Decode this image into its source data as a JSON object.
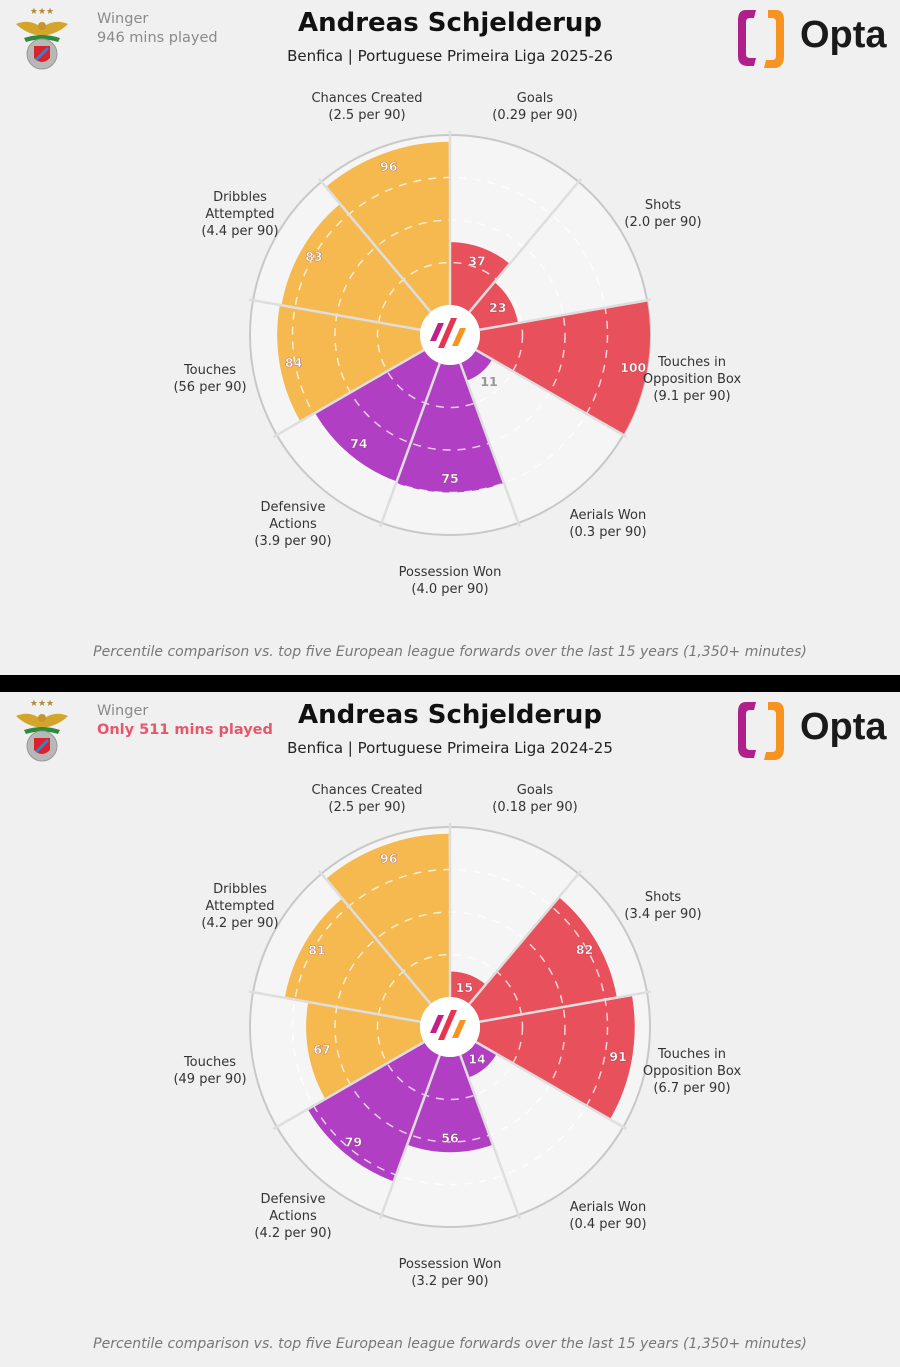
{
  "colors": {
    "attacking": "#e8505b",
    "possession": "#f5b94f",
    "defending": "#b13fc4",
    "low_label": "#999999",
    "warning": "#e8566a"
  },
  "brand": {
    "name": "Opta"
  },
  "panels": [
    {
      "position": "Winger",
      "minutes": "946 mins played",
      "minutes_warning": false,
      "title": "Andreas Schjelderup",
      "subtitle": "Benfica | Portuguese Primeira Liga 2025-26",
      "footer": "Percentile comparison vs. top five European league forwards over the last 15 years (1,350+ minutes)",
      "chart_data": {
        "type": "polar-bar",
        "scale": [
          0,
          100
        ],
        "categories": [
          {
            "name": "Goals",
            "lines": [
              "Goals"
            ],
            "per90": "(0.29 per 90)",
            "value": 37,
            "group": "attacking"
          },
          {
            "name": "Shots",
            "lines": [
              "Shots"
            ],
            "per90": "(2.0 per 90)",
            "value": 23,
            "group": "attacking"
          },
          {
            "name": "Touches in Opposition Box",
            "lines": [
              "Touches in",
              "Opposition Box"
            ],
            "per90": "(9.1 per 90)",
            "value": 100,
            "group": "attacking"
          },
          {
            "name": "Aerials Won",
            "lines": [
              "Aerials Won"
            ],
            "per90": "(0.3 per 90)",
            "value": 11,
            "group": "defending"
          },
          {
            "name": "Possession Won",
            "lines": [
              "Possession Won"
            ],
            "per90": "(4.0 per 90)",
            "value": 75,
            "group": "defending"
          },
          {
            "name": "Defensive Actions",
            "lines": [
              "Defensive",
              "Actions"
            ],
            "per90": "(3.9 per 90)",
            "value": 74,
            "group": "defending"
          },
          {
            "name": "Touches",
            "lines": [
              "Touches"
            ],
            "per90": "(56 per 90)",
            "value": 84,
            "group": "possession"
          },
          {
            "name": "Dribbles Attempted",
            "lines": [
              "Dribbles",
              "Attempted"
            ],
            "per90": "(4.4 per 90)",
            "value": 83,
            "group": "possession"
          },
          {
            "name": "Chances Created",
            "lines": [
              "Chances Created"
            ],
            "per90": "(2.5 per 90)",
            "value": 96,
            "group": "possession"
          }
        ]
      }
    },
    {
      "position": "Winger",
      "minutes": "Only 511 mins played",
      "minutes_warning": true,
      "title": "Andreas Schjelderup",
      "subtitle": "Benfica | Portuguese Primeira Liga 2024-25",
      "footer": "Percentile comparison vs. top five European league forwards over the last 15 years (1,350+ minutes)",
      "chart_data": {
        "type": "polar-bar",
        "scale": [
          0,
          100
        ],
        "categories": [
          {
            "name": "Goals",
            "lines": [
              "Goals"
            ],
            "per90": "(0.18 per 90)",
            "value": 15,
            "group": "attacking"
          },
          {
            "name": "Shots",
            "lines": [
              "Shots"
            ],
            "per90": "(3.4 per 90)",
            "value": 82,
            "group": "attacking"
          },
          {
            "name": "Touches in Opposition Box",
            "lines": [
              "Touches in",
              "Opposition Box"
            ],
            "per90": "(6.7 per 90)",
            "value": 91,
            "group": "attacking"
          },
          {
            "name": "Aerials Won",
            "lines": [
              "Aerials Won"
            ],
            "per90": "(0.4 per 90)",
            "value": 14,
            "group": "defending"
          },
          {
            "name": "Possession Won",
            "lines": [
              "Possession Won"
            ],
            "per90": "(3.2 per 90)",
            "value": 56,
            "group": "defending"
          },
          {
            "name": "Defensive Actions",
            "lines": [
              "Defensive",
              "Actions"
            ],
            "per90": "(4.2 per 90)",
            "value": 79,
            "group": "defending"
          },
          {
            "name": "Touches",
            "lines": [
              "Touches"
            ],
            "per90": "(49 per 90)",
            "value": 67,
            "group": "possession"
          },
          {
            "name": "Dribbles Attempted",
            "lines": [
              "Dribbles",
              "Attempted"
            ],
            "per90": "(4.2 per 90)",
            "value": 81,
            "group": "possession"
          },
          {
            "name": "Chances Created",
            "lines": [
              "Chances Created"
            ],
            "per90": "(2.5 per 90)",
            "value": 96,
            "group": "possession"
          }
        ]
      }
    }
  ]
}
